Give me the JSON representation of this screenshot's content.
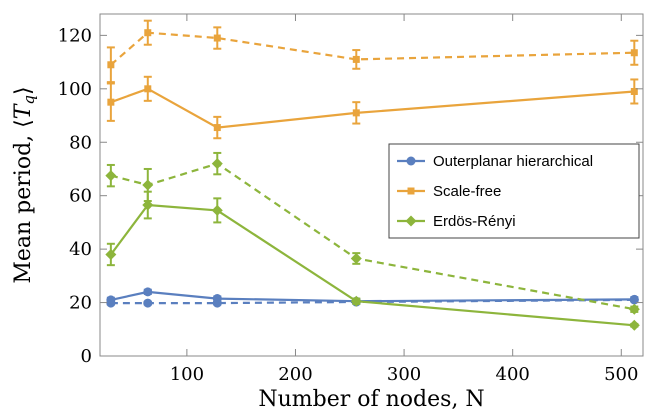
{
  "chart_data": {
    "type": "line",
    "xlabel": "Number of nodes, N",
    "ylabel": "Mean period, ⟨T_q⟩",
    "ylabel_main": "Mean period, ",
    "ylabel_symbol": "T",
    "ylabel_sub": "q",
    "xlim": [
      20,
      520
    ],
    "ylim": [
      0,
      128
    ],
    "xticks": [
      100,
      200,
      300,
      400,
      500
    ],
    "yticks": [
      0,
      20,
      40,
      60,
      80,
      100,
      120
    ],
    "grid": false,
    "legend_position": "right-middle",
    "series": [
      {
        "name": "Outerplanar hierarchical",
        "color": "#5a7fbf",
        "marker": "circle",
        "dashed": false,
        "x": [
          30,
          64,
          128,
          256,
          512
        ],
        "values": [
          21,
          24,
          21.5,
          20.5,
          21.2
        ],
        "err": [
          0.8,
          0.8,
          0.8,
          0.8,
          0.8
        ]
      },
      {
        "name": "",
        "color": "#5a7fbf",
        "marker": "circle",
        "dashed": true,
        "x": [
          30,
          64,
          128,
          256,
          512
        ],
        "values": [
          19.8,
          19.8,
          19.8,
          20.2,
          21
        ],
        "err": [
          0.5,
          0.5,
          0.5,
          0.5,
          0.5
        ]
      },
      {
        "name": "Scale-free",
        "color": "#e9a43c",
        "marker": "square",
        "dashed": false,
        "x": [
          30,
          64,
          128,
          256,
          512
        ],
        "values": [
          95,
          100,
          85.5,
          91,
          99
        ],
        "err": [
          7,
          4.5,
          4,
          4,
          4.5
        ]
      },
      {
        "name": "",
        "color": "#e9a43c",
        "marker": "square",
        "dashed": true,
        "x": [
          30,
          64,
          128,
          256,
          512
        ],
        "values": [
          109,
          121,
          119,
          111,
          113.5
        ],
        "err": [
          6.5,
          4.5,
          4,
          3.5,
          4.5
        ]
      },
      {
        "name": "Erdös-Rényi",
        "color": "#8db53c",
        "marker": "diamond",
        "dashed": false,
        "x": [
          30,
          64,
          128,
          256,
          512
        ],
        "values": [
          38,
          56.5,
          54.5,
          20.5,
          11.5
        ],
        "err": [
          4,
          5,
          4.5,
          1,
          0.5
        ]
      },
      {
        "name": "",
        "color": "#8db53c",
        "marker": "diamond",
        "dashed": true,
        "x": [
          30,
          64,
          128,
          256,
          512
        ],
        "values": [
          67.5,
          64,
          72,
          36.5,
          17.5
        ],
        "err": [
          4,
          6,
          4,
          2,
          1
        ]
      }
    ]
  }
}
